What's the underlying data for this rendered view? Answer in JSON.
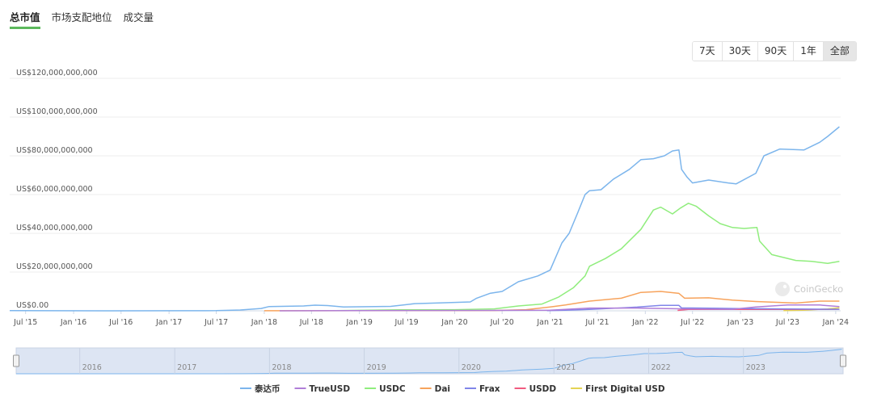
{
  "tabs": [
    {
      "label": "总市值",
      "active": true
    },
    {
      "label": "市场支配地位",
      "active": false
    },
    {
      "label": "成交量",
      "active": false
    }
  ],
  "ranges": [
    {
      "label": "7天",
      "active": false
    },
    {
      "label": "30天",
      "active": false
    },
    {
      "label": "90天",
      "active": false
    },
    {
      "label": "1年",
      "active": false
    },
    {
      "label": "全部",
      "active": true
    }
  ],
  "watermark": "CoinGecko",
  "colors": {
    "accent": "#5cb85c",
    "grid": "#ececec",
    "navigator_fill": "#dde5f3",
    "navigator_line": "#7cb5ec"
  },
  "chart_data": {
    "type": "line",
    "title": "",
    "xlabel": "",
    "ylabel": "",
    "ylim": [
      0,
      120000000000
    ],
    "xlim": [
      "2015-05-01",
      "2024-01-20"
    ],
    "y_ticks": [
      "US$0.00",
      "US$20,000,000,000",
      "US$40,000,000,000",
      "US$60,000,000,000",
      "US$80,000,000,000",
      "US$100,000,000,000",
      "US$120,000,000,000"
    ],
    "x_ticks": [
      "Jul '15",
      "Jan '16",
      "Jul '16",
      "Jan '17",
      "Jul '17",
      "Jan '18",
      "Jul '18",
      "Jan '19",
      "Jul '19",
      "Jan '20",
      "Jul '20",
      "Jan '21",
      "Jul '21",
      "Jan '22",
      "Jul '22",
      "Jan '23",
      "Jul '23",
      "Jan '24"
    ],
    "navigator_labels": [
      "2016",
      "2017",
      "2018",
      "2019",
      "2020",
      "2021",
      "2022",
      "2023"
    ],
    "grid": true,
    "legend": "bottom-center",
    "series": [
      {
        "name": "泰达币",
        "color": "#7cb5ec",
        "points": [
          [
            "2015-05-01",
            0.1
          ],
          [
            "2016-06-01",
            0.01
          ],
          [
            "2017-03-01",
            0.05
          ],
          [
            "2017-07-01",
            0.1
          ],
          [
            "2017-10-01",
            0.4
          ],
          [
            "2017-12-20",
            1.2
          ],
          [
            "2018-01-20",
            2.2
          ],
          [
            "2018-06-01",
            2.5
          ],
          [
            "2018-07-15",
            2.9
          ],
          [
            "2018-09-01",
            2.7
          ],
          [
            "2018-11-01",
            2.0
          ],
          [
            "2019-05-01",
            2.3
          ],
          [
            "2019-08-01",
            3.7
          ],
          [
            "2019-11-01",
            4.1
          ],
          [
            "2020-03-01",
            4.6
          ],
          [
            "2020-03-25",
            6.5
          ],
          [
            "2020-05-15",
            9.0
          ],
          [
            "2020-07-01",
            10.0
          ],
          [
            "2020-09-01",
            15.0
          ],
          [
            "2020-11-15",
            18.0
          ],
          [
            "2021-01-01",
            21.0
          ],
          [
            "2021-02-15",
            35.0
          ],
          [
            "2021-03-15",
            40.0
          ],
          [
            "2021-04-15",
            50.0
          ],
          [
            "2021-05-15",
            60.0
          ],
          [
            "2021-06-01",
            62.0
          ],
          [
            "2021-07-15",
            62.5
          ],
          [
            "2021-09-01",
            68.0
          ],
          [
            "2021-11-01",
            73.0
          ],
          [
            "2021-12-15",
            78.0
          ],
          [
            "2022-02-01",
            78.5
          ],
          [
            "2022-03-15",
            80.0
          ],
          [
            "2022-04-15",
            82.5
          ],
          [
            "2022-05-10",
            83.0
          ],
          [
            "2022-05-20",
            73.0
          ],
          [
            "2022-06-10",
            69.0
          ],
          [
            "2022-07-01",
            66.0
          ],
          [
            "2022-09-01",
            67.5
          ],
          [
            "2022-11-15",
            66.0
          ],
          [
            "2022-12-15",
            65.5
          ],
          [
            "2023-03-01",
            71.0
          ],
          [
            "2023-04-01",
            80.0
          ],
          [
            "2023-06-01",
            83.5
          ],
          [
            "2023-09-01",
            83.0
          ],
          [
            "2023-11-01",
            87.0
          ],
          [
            "2023-12-01",
            90.0
          ],
          [
            "2024-01-15",
            95.0
          ]
        ]
      },
      {
        "name": "TrueUSD",
        "color": "#b07ed8",
        "points": [
          [
            "2018-03-01",
            0.02
          ],
          [
            "2019-06-01",
            0.15
          ],
          [
            "2020-06-01",
            0.2
          ],
          [
            "2021-01-01",
            0.3
          ],
          [
            "2021-06-01",
            1.4
          ],
          [
            "2021-12-01",
            1.4
          ],
          [
            "2022-06-01",
            1.0
          ],
          [
            "2022-12-01",
            0.8
          ],
          [
            "2023-03-01",
            2.0
          ],
          [
            "2023-07-01",
            3.0
          ],
          [
            "2023-11-01",
            3.0
          ],
          [
            "2024-01-15",
            2.2
          ]
        ]
      },
      {
        "name": "USDC",
        "color": "#90ed7d",
        "points": [
          [
            "2018-10-01",
            0.1
          ],
          [
            "2019-06-01",
            0.5
          ],
          [
            "2020-01-01",
            0.6
          ],
          [
            "2020-06-01",
            1.0
          ],
          [
            "2020-09-01",
            2.5
          ],
          [
            "2020-12-01",
            3.5
          ],
          [
            "2021-02-01",
            7.0
          ],
          [
            "2021-04-01",
            12.0
          ],
          [
            "2021-05-15",
            18.0
          ],
          [
            "2021-06-01",
            23.0
          ],
          [
            "2021-08-01",
            27.0
          ],
          [
            "2021-10-01",
            32.0
          ],
          [
            "2021-12-15",
            42.0
          ],
          [
            "2022-02-01",
            52.0
          ],
          [
            "2022-03-01",
            53.5
          ],
          [
            "2022-04-15",
            50.0
          ],
          [
            "2022-05-15",
            53.0
          ],
          [
            "2022-06-15",
            55.5
          ],
          [
            "2022-07-15",
            54.0
          ],
          [
            "2022-09-01",
            49.0
          ],
          [
            "2022-10-15",
            45.0
          ],
          [
            "2022-12-01",
            43.0
          ],
          [
            "2023-01-15",
            42.5
          ],
          [
            "2023-03-05",
            43.0
          ],
          [
            "2023-03-15",
            36.0
          ],
          [
            "2023-05-01",
            29.0
          ],
          [
            "2023-08-01",
            26.0
          ],
          [
            "2023-10-01",
            25.5
          ],
          [
            "2023-12-01",
            24.5
          ],
          [
            "2024-01-15",
            25.5
          ]
        ]
      },
      {
        "name": "Dai",
        "color": "#f7a35c",
        "points": [
          [
            "2018-01-01",
            0.05
          ],
          [
            "2019-06-01",
            0.1
          ],
          [
            "2020-06-01",
            0.15
          ],
          [
            "2020-10-01",
            0.6
          ],
          [
            "2021-01-01",
            2.0
          ],
          [
            "2021-03-01",
            3.0
          ],
          [
            "2021-06-01",
            5.0
          ],
          [
            "2021-10-01",
            6.5
          ],
          [
            "2021-12-15",
            9.5
          ],
          [
            "2022-03-01",
            10.0
          ],
          [
            "2022-05-10",
            9.0
          ],
          [
            "2022-06-01",
            6.5
          ],
          [
            "2022-09-01",
            6.7
          ],
          [
            "2022-12-01",
            5.5
          ],
          [
            "2023-03-01",
            4.8
          ],
          [
            "2023-08-01",
            4.0
          ],
          [
            "2023-11-01",
            5.0
          ],
          [
            "2024-01-15",
            5.0
          ]
        ]
      },
      {
        "name": "Frax",
        "color": "#8085e9",
        "points": [
          [
            "2020-12-20",
            0.1
          ],
          [
            "2021-03-01",
            0.3
          ],
          [
            "2021-06-01",
            0.7
          ],
          [
            "2021-12-01",
            1.9
          ],
          [
            "2022-03-01",
            2.8
          ],
          [
            "2022-05-10",
            2.8
          ],
          [
            "2022-05-20",
            1.5
          ],
          [
            "2022-12-01",
            1.2
          ],
          [
            "2023-06-01",
            1.0
          ],
          [
            "2024-01-15",
            0.8
          ]
        ]
      },
      {
        "name": "USDD",
        "color": "#f15c80",
        "points": [
          [
            "2022-05-05",
            0.2
          ],
          [
            "2022-06-15",
            0.7
          ],
          [
            "2022-12-01",
            0.7
          ],
          [
            "2023-06-01",
            0.7
          ],
          [
            "2024-01-15",
            0.7
          ]
        ]
      },
      {
        "name": "First Digital USD",
        "color": "#e4d354",
        "points": [
          [
            "2023-06-15",
            0.1
          ],
          [
            "2023-09-01",
            0.3
          ],
          [
            "2023-12-01",
            1.0
          ],
          [
            "2024-01-15",
            1.6
          ]
        ]
      }
    ],
    "value_unit_multiplier": 1000000000
  }
}
